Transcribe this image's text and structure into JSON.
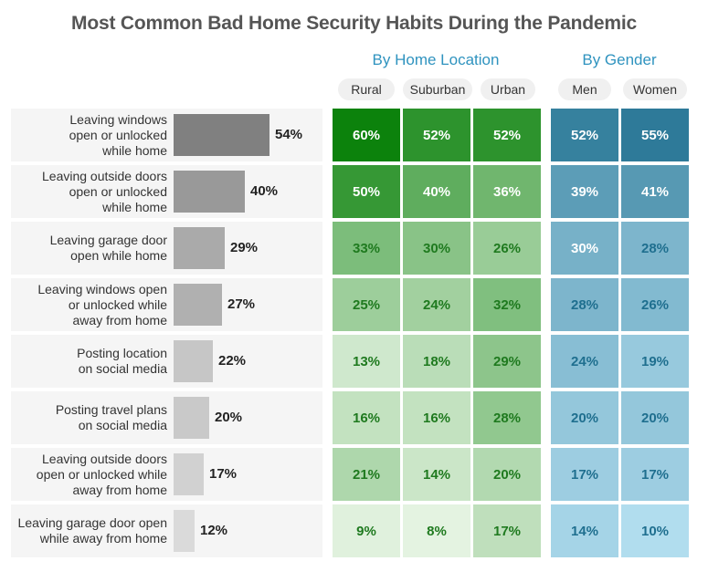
{
  "title": "Most Common Bad Home Security Habits During the Pandemic",
  "groups": {
    "location": "By Home Location",
    "gender": "By Gender"
  },
  "columns": [
    "Rural",
    "Suburban",
    "Urban",
    "Men",
    "Women"
  ],
  "colors": {
    "bars": [
      "#808080",
      "#999999",
      "#aaaaaa",
      "#b0b0b0",
      "#c6c6c6",
      "#c9c9c9",
      "#d1d1d1",
      "#dadada"
    ],
    "green_scale": [
      "#e4f3e1",
      "#0c820c"
    ],
    "blue_scale": [
      "#b7e1f2",
      "#1f6f8f"
    ]
  },
  "chart_data": {
    "type": "bar",
    "title": "Most Common Bad Home Security Habits During the Pandemic",
    "categories": [
      "Leaving windows open or unlocked while home",
      "Leaving outside doors open or unlocked while home",
      "Leaving garage door open while home",
      "Leaving windows open or unlocked while away from home",
      "Posting location on social media",
      "Posting travel plans on social media",
      "Leaving outside doors open or unlocked while away from home",
      "Leaving garage door open while away from home"
    ],
    "category_lines": [
      [
        "Leaving windows",
        "open or unlocked",
        "while home"
      ],
      [
        "Leaving outside doors",
        "open or unlocked",
        "while home"
      ],
      [
        "Leaving garage door",
        "open while home"
      ],
      [
        "Leaving windows open",
        "or unlocked while",
        "away from home"
      ],
      [
        "Posting location",
        "on social media"
      ],
      [
        "Posting travel plans",
        "on social media"
      ],
      [
        "Leaving outside doors",
        "open or unlocked while",
        "away from home"
      ],
      [
        "Leaving garage door open",
        "while away from home"
      ]
    ],
    "values": [
      54,
      40,
      29,
      27,
      22,
      20,
      17,
      12
    ],
    "value_labels": [
      "54%",
      "40%",
      "29%",
      "27%",
      "22%",
      "20%",
      "17%",
      "12%"
    ],
    "breakdown": {
      "type": "heatmap",
      "columns": [
        "Rural",
        "Suburban",
        "Urban",
        "Men",
        "Women"
      ],
      "column_groups": [
        {
          "name": "By Home Location",
          "columns": [
            "Rural",
            "Suburban",
            "Urban"
          ]
        },
        {
          "name": "By Gender",
          "columns": [
            "Men",
            "Women"
          ]
        }
      ],
      "rows": [
        [
          60,
          52,
          52,
          52,
          55
        ],
        [
          50,
          40,
          36,
          39,
          41
        ],
        [
          33,
          30,
          26,
          30,
          28
        ],
        [
          25,
          24,
          32,
          28,
          26
        ],
        [
          13,
          18,
          29,
          24,
          19
        ],
        [
          16,
          16,
          28,
          20,
          20
        ],
        [
          21,
          14,
          20,
          17,
          17
        ],
        [
          9,
          8,
          17,
          14,
          10
        ]
      ],
      "labels": [
        [
          "60%",
          "52%",
          "52%",
          "52%",
          "55%"
        ],
        [
          "50%",
          "40%",
          "36%",
          "39%",
          "41%"
        ],
        [
          "33%",
          "30%",
          "26%",
          "30%",
          "28%"
        ],
        [
          "25%",
          "24%",
          "32%",
          "28%",
          "26%"
        ],
        [
          "13%",
          "18%",
          "29%",
          "24%",
          "19%"
        ],
        [
          "16%",
          "16%",
          "28%",
          "20%",
          "20%"
        ],
        [
          "21%",
          "14%",
          "20%",
          "17%",
          "17%"
        ],
        [
          "9%",
          "8%",
          "17%",
          "14%",
          "10%"
        ]
      ]
    }
  }
}
